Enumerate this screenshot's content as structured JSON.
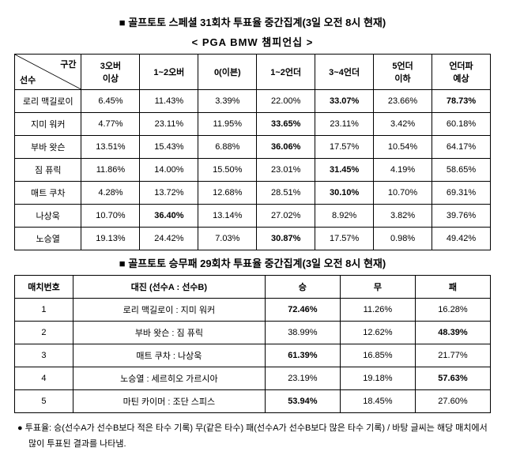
{
  "title1": "■ 골프토토 스페셜 31회차 투표율 중간집계(3일 오전 8시 현재)",
  "subtitle": "< PGA BMW 챔피언십 >",
  "table1": {
    "diag_top": "구간",
    "diag_bot": "선수",
    "headers": [
      "3오버\n이상",
      "1~2오버",
      "0(이븐)",
      "1~2언더",
      "3~4언더",
      "5언더\n이하",
      "언더파\n예상"
    ],
    "rows": [
      {
        "player": "로리 맥길로이",
        "vals": [
          "6.45%",
          "11.43%",
          "3.39%",
          "22.00%",
          "33.07%",
          "23.66%",
          "78.73%"
        ],
        "bold": [
          false,
          false,
          false,
          false,
          true,
          false,
          true
        ]
      },
      {
        "player": "지미 워커",
        "vals": [
          "4.77%",
          "23.11%",
          "11.95%",
          "33.65%",
          "23.11%",
          "3.42%",
          "60.18%"
        ],
        "bold": [
          false,
          false,
          false,
          true,
          false,
          false,
          false
        ]
      },
      {
        "player": "부바 왓슨",
        "vals": [
          "13.51%",
          "15.43%",
          "6.88%",
          "36.06%",
          "17.57%",
          "10.54%",
          "64.17%"
        ],
        "bold": [
          false,
          false,
          false,
          true,
          false,
          false,
          false
        ]
      },
      {
        "player": "짐 퓨릭",
        "vals": [
          "11.86%",
          "14.00%",
          "15.50%",
          "23.01%",
          "31.45%",
          "4.19%",
          "58.65%"
        ],
        "bold": [
          false,
          false,
          false,
          false,
          true,
          false,
          false
        ]
      },
      {
        "player": "매트 쿠차",
        "vals": [
          "4.28%",
          "13.72%",
          "12.68%",
          "28.51%",
          "30.10%",
          "10.70%",
          "69.31%"
        ],
        "bold": [
          false,
          false,
          false,
          false,
          true,
          false,
          false
        ]
      },
      {
        "player": "나상욱",
        "vals": [
          "10.70%",
          "36.40%",
          "13.14%",
          "27.02%",
          "8.92%",
          "3.82%",
          "39.76%"
        ],
        "bold": [
          false,
          true,
          false,
          false,
          false,
          false,
          false
        ]
      },
      {
        "player": "노승열",
        "vals": [
          "19.13%",
          "24.42%",
          "7.03%",
          "30.87%",
          "17.57%",
          "0.98%",
          "49.42%"
        ],
        "bold": [
          false,
          false,
          false,
          true,
          false,
          false,
          false
        ]
      }
    ]
  },
  "title2": "■ 골프토토 승무패 29회차 투표율 중간집계(3일 오전 8시 현재)",
  "table2": {
    "headers": [
      "매치번호",
      "대진 (선수A : 선수B)",
      "승",
      "무",
      "패"
    ],
    "rows": [
      {
        "no": "1",
        "match": "로리 맥길로이 : 지미 워커",
        "w": "72.46%",
        "d": "11.26%",
        "l": "16.28%",
        "bold": "w"
      },
      {
        "no": "2",
        "match": "부바 왓슨 : 짐 퓨릭",
        "w": "38.99%",
        "d": "12.62%",
        "l": "48.39%",
        "bold": "l"
      },
      {
        "no": "3",
        "match": "매트 쿠차 : 나상욱",
        "w": "61.39%",
        "d": "16.85%",
        "l": "21.77%",
        "bold": "w"
      },
      {
        "no": "4",
        "match": "노승열 : 세르히오 가르시아",
        "w": "23.19%",
        "d": "19.18%",
        "l": "57.63%",
        "bold": "l"
      },
      {
        "no": "5",
        "match": "마틴 카이머 : 조단 스피스",
        "w": "53.94%",
        "d": "18.45%",
        "l": "27.60%",
        "bold": "w"
      }
    ]
  },
  "footnote": "● 투표율: 승(선수A가 선수B보다 적은 타수 기록) 무(같은 타수) 패(선수A가 선수B보다 많은 타수 기록) / 바탕 글씨는 해당 매치에서 많이 투표된 결과를 나타냄."
}
